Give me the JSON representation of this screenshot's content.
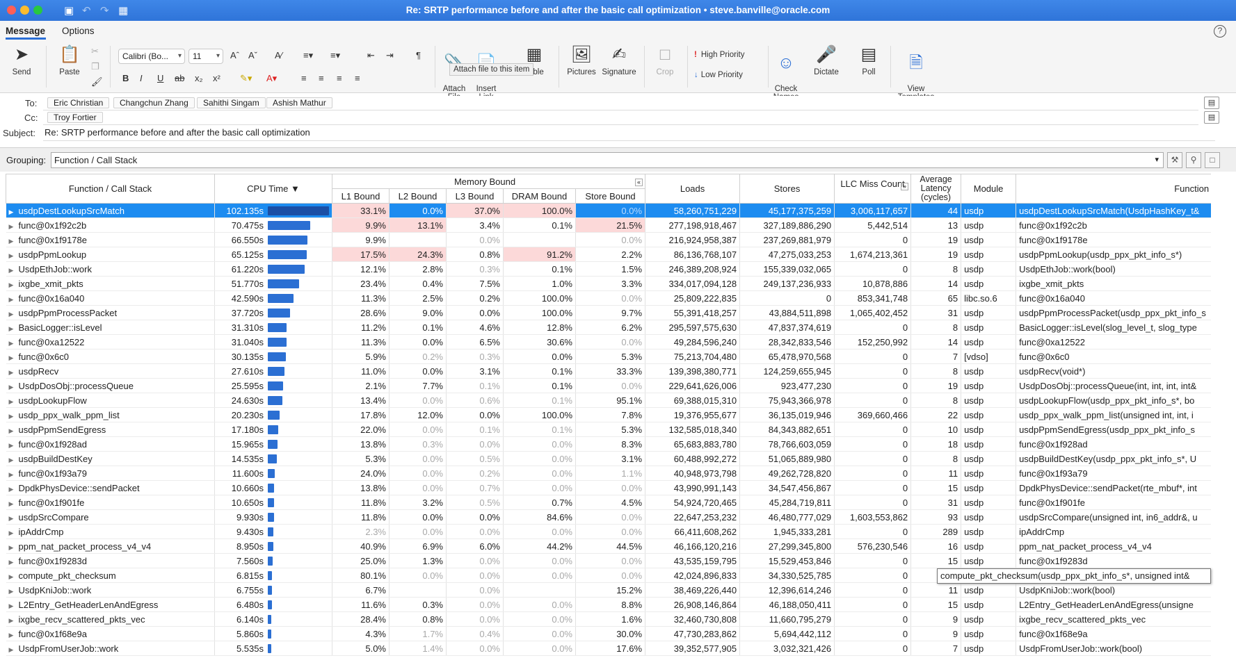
{
  "window": {
    "title": "Re: SRTP performance before and after the basic call optimization • steve.banville@oracle.com"
  },
  "ribbon": {
    "tabs": [
      {
        "label": "Message"
      },
      {
        "label": "Options"
      }
    ],
    "send": "Send",
    "paste": "Paste",
    "font_name": "Calibri (Bo...",
    "font_size": "11",
    "attach_file": "Attach\nFile",
    "insert_link": "Insert\nLink",
    "table": "Table",
    "pictures": "Pictures",
    "signature": "Signature",
    "crop": "Crop",
    "high_priority": "High Priority",
    "low_priority": "Low Priority",
    "check_names": "Check\nNames",
    "dictate": "Dictate",
    "poll": "Poll",
    "view_templates": "View\nTemplates",
    "tooltip": "Attach file to this item"
  },
  "header": {
    "to_label": "To:",
    "to": [
      "Eric Christian",
      "Changchun Zhang",
      "Sahithi Singam",
      "Ashish Mathur"
    ],
    "cc_label": "Cc:",
    "cc": [
      "Troy Fortier"
    ],
    "subject_label": "Subject:",
    "subject": "Re: SRTP performance before and after the basic call optimization"
  },
  "grouping": {
    "label": "Grouping:",
    "value": "Function / Call Stack"
  },
  "table": {
    "headers": {
      "function": "Function / Call Stack",
      "cpu_time": "CPU Time ▼",
      "memory_bound": "Memory Bound",
      "l1": "L1 Bound",
      "l2": "L2 Bound",
      "l3": "L3 Bound",
      "dram": "DRAM Bound",
      "store": "Store Bound",
      "loads": "Loads",
      "stores": "Stores",
      "llc": "LLC Miss Count",
      "latency": "Average Latency (cycles)",
      "module": "Module",
      "func_full": "Function"
    },
    "cpu_max_seconds": 102.135,
    "rows": [
      {
        "fn": "usdpDestLookupSrcMatch",
        "cpu": "102.135s",
        "l1": "33.1%",
        "l2": "0.0%",
        "l3": "37.0%",
        "dram": "100.0%",
        "store": "0.0%",
        "loads": "58,260,751,229",
        "stores": "45,177,375,259",
        "llc": "3,006,117,657",
        "lat": "44",
        "mod": "usdp",
        "full": "usdpDestLookupSrcMatch(UsdpHashKey_t&"
      },
      {
        "fn": "func@0x1f92c2b",
        "cpu": "70.475s",
        "l1": "9.9%",
        "l2": "13.1%",
        "l3": "3.4%",
        "dram": "0.1%",
        "store": "21.5%",
        "loads": "277,198,918,467",
        "stores": "327,189,886,290",
        "llc": "5,442,514",
        "lat": "13",
        "mod": "usdp",
        "full": "func@0x1f92c2b"
      },
      {
        "fn": "func@0x1f9178e",
        "cpu": "66.550s",
        "l1": "9.9%",
        "l2": "",
        "l3": "0.0%",
        "dram": "",
        "store": "0.0%",
        "loads": "216,924,958,387",
        "stores": "237,269,881,979",
        "llc": "0",
        "lat": "19",
        "mod": "usdp",
        "full": "func@0x1f9178e"
      },
      {
        "fn": "usdpPpmLookup",
        "cpu": "65.125s",
        "l1": "17.5%",
        "l2": "24.3%",
        "l3": "0.8%",
        "dram": "91.2%",
        "store": "2.2%",
        "loads": "86,136,768,107",
        "stores": "47,275,033,253",
        "llc": "1,674,213,361",
        "lat": "19",
        "mod": "usdp",
        "full": "usdpPpmLookup(usdp_ppx_pkt_info_s*)"
      },
      {
        "fn": "UsdpEthJob::work",
        "cpu": "61.220s",
        "l1": "12.1%",
        "l2": "2.8%",
        "l3": "0.3%",
        "dram": "0.1%",
        "store": "1.5%",
        "loads": "246,389,208,924",
        "stores": "155,339,032,065",
        "llc": "0",
        "lat": "8",
        "mod": "usdp",
        "full": "UsdpEthJob::work(bool)"
      },
      {
        "fn": "ixgbe_xmit_pkts",
        "cpu": "51.770s",
        "l1": "23.4%",
        "l2": "0.4%",
        "l3": "7.5%",
        "dram": "1.0%",
        "store": "3.3%",
        "loads": "334,017,094,128",
        "stores": "249,137,236,933",
        "llc": "10,878,886",
        "lat": "14",
        "mod": "usdp",
        "full": "ixgbe_xmit_pkts"
      },
      {
        "fn": "func@0x16a040",
        "cpu": "42.590s",
        "l1": "11.3%",
        "l2": "2.5%",
        "l3": "0.2%",
        "dram": "100.0%",
        "store": "0.0%",
        "loads": "25,809,222,835",
        "stores": "0",
        "llc": "853,341,748",
        "lat": "65",
        "mod": "libc.so.6",
        "full": "func@0x16a040"
      },
      {
        "fn": "usdpPpmProcessPacket",
        "cpu": "37.720s",
        "l1": "28.6%",
        "l2": "9.0%",
        "l3": "0.0%",
        "dram": "100.0%",
        "store": "9.7%",
        "loads": "55,391,418,257",
        "stores": "43,884,511,898",
        "llc": "1,065,402,452",
        "lat": "31",
        "mod": "usdp",
        "full": "usdpPpmProcessPacket(usdp_ppx_pkt_info_s"
      },
      {
        "fn": "BasicLogger::isLevel",
        "cpu": "31.310s",
        "l1": "11.2%",
        "l2": "0.1%",
        "l3": "4.6%",
        "dram": "12.8%",
        "store": "6.2%",
        "loads": "295,597,575,630",
        "stores": "47,837,374,619",
        "llc": "0",
        "lat": "8",
        "mod": "usdp",
        "full": "BasicLogger::isLevel(slog_level_t, slog_type"
      },
      {
        "fn": "func@0xa12522",
        "cpu": "31.040s",
        "l1": "11.3%",
        "l2": "0.0%",
        "l3": "6.5%",
        "dram": "30.6%",
        "store": "0.0%",
        "loads": "49,284,596,240",
        "stores": "28,342,833,546",
        "llc": "152,250,992",
        "lat": "14",
        "mod": "usdp",
        "full": "func@0xa12522"
      },
      {
        "fn": "func@0x6c0",
        "cpu": "30.135s",
        "l1": "5.9%",
        "l2": "0.2%",
        "l3": "0.3%",
        "dram": "0.0%",
        "store": "5.3%",
        "loads": "75,213,704,480",
        "stores": "65,478,970,568",
        "llc": "0",
        "lat": "7",
        "mod": "[vdso]",
        "full": "func@0x6c0"
      },
      {
        "fn": "usdpRecv",
        "cpu": "27.610s",
        "l1": "11.0%",
        "l2": "0.0%",
        "l3": "3.1%",
        "dram": "0.1%",
        "store": "33.3%",
        "loads": "139,398,380,771",
        "stores": "124,259,655,945",
        "llc": "0",
        "lat": "8",
        "mod": "usdp",
        "full": "usdpRecv(void*)"
      },
      {
        "fn": "UsdpDosObj::processQueue",
        "cpu": "25.595s",
        "l1": "2.1%",
        "l2": "7.7%",
        "l3": "0.1%",
        "dram": "0.1%",
        "store": "0.0%",
        "loads": "229,641,626,006",
        "stores": "923,477,230",
        "llc": "0",
        "lat": "19",
        "mod": "usdp",
        "full": "UsdpDosObj::processQueue(int, int, int, int&"
      },
      {
        "fn": "usdpLookupFlow",
        "cpu": "24.630s",
        "l1": "13.4%",
        "l2": "0.0%",
        "l3": "0.6%",
        "dram": "0.1%",
        "store": "95.1%",
        "loads": "69,388,015,310",
        "stores": "75,943,366,978",
        "llc": "0",
        "lat": "8",
        "mod": "usdp",
        "full": "usdpLookupFlow(usdp_ppx_pkt_info_s*, bo"
      },
      {
        "fn": "usdp_ppx_walk_ppm_list",
        "cpu": "20.230s",
        "l1": "17.8%",
        "l2": "12.0%",
        "l3": "0.0%",
        "dram": "100.0%",
        "store": "7.8%",
        "loads": "19,376,955,677",
        "stores": "36,135,019,946",
        "llc": "369,660,466",
        "lat": "22",
        "mod": "usdp",
        "full": "usdp_ppx_walk_ppm_list(unsigned int, int, i"
      },
      {
        "fn": "usdpPpmSendEgress",
        "cpu": "17.180s",
        "l1": "22.0%",
        "l2": "0.0%",
        "l3": "0.1%",
        "dram": "0.1%",
        "store": "5.3%",
        "loads": "132,585,018,340",
        "stores": "84,343,882,651",
        "llc": "0",
        "lat": "10",
        "mod": "usdp",
        "full": "usdpPpmSendEgress(usdp_ppx_pkt_info_s"
      },
      {
        "fn": "func@0x1f928ad",
        "cpu": "15.965s",
        "l1": "13.8%",
        "l2": "0.3%",
        "l3": "0.0%",
        "dram": "0.0%",
        "store": "8.3%",
        "loads": "65,683,883,780",
        "stores": "78,766,603,059",
        "llc": "0",
        "lat": "18",
        "mod": "usdp",
        "full": "func@0x1f928ad"
      },
      {
        "fn": "usdpBuildDestKey",
        "cpu": "14.535s",
        "l1": "5.3%",
        "l2": "0.0%",
        "l3": "0.5%",
        "dram": "0.0%",
        "store": "3.1%",
        "loads": "60,488,992,272",
        "stores": "51,065,889,980",
        "llc": "0",
        "lat": "8",
        "mod": "usdp",
        "full": "usdpBuildDestKey(usdp_ppx_pkt_info_s*, U"
      },
      {
        "fn": "func@0x1f93a79",
        "cpu": "11.600s",
        "l1": "24.0%",
        "l2": "0.0%",
        "l3": "0.2%",
        "dram": "0.0%",
        "store": "1.1%",
        "loads": "40,948,973,798",
        "stores": "49,262,728,820",
        "llc": "0",
        "lat": "11",
        "mod": "usdp",
        "full": "func@0x1f93a79"
      },
      {
        "fn": "DpdkPhysDevice::sendPacket",
        "cpu": "10.660s",
        "l1": "13.8%",
        "l2": "0.0%",
        "l3": "0.7%",
        "dram": "0.0%",
        "store": "0.0%",
        "loads": "43,990,991,143",
        "stores": "34,547,456,867",
        "llc": "0",
        "lat": "15",
        "mod": "usdp",
        "full": "DpdkPhysDevice::sendPacket(rte_mbuf*, int"
      },
      {
        "fn": "func@0x1f901fe",
        "cpu": "10.650s",
        "l1": "11.8%",
        "l2": "3.2%",
        "l3": "0.5%",
        "dram": "0.7%",
        "store": "4.5%",
        "loads": "54,924,720,465",
        "stores": "45,284,719,811",
        "llc": "0",
        "lat": "31",
        "mod": "usdp",
        "full": "func@0x1f901fe"
      },
      {
        "fn": "usdpSrcCompare",
        "cpu": "9.930s",
        "l1": "11.8%",
        "l2": "0.0%",
        "l3": "0.0%",
        "dram": "84.6%",
        "store": "0.0%",
        "loads": "22,647,253,232",
        "stores": "46,480,777,029",
        "llc": "1,603,553,862",
        "lat": "93",
        "mod": "usdp",
        "full": "usdpSrcCompare(unsigned int, in6_addr&, u"
      },
      {
        "fn": "ipAddrCmp",
        "cpu": "9.430s",
        "l1": "2.3%",
        "l2": "0.0%",
        "l3": "0.0%",
        "dram": "0.0%",
        "store": "0.0%",
        "loads": "66,411,608,262",
        "stores": "1,945,333,281",
        "llc": "0",
        "lat": "289",
        "mod": "usdp",
        "full": "ipAddrCmp"
      },
      {
        "fn": "ppm_nat_packet_process_v4_v4",
        "cpu": "8.950s",
        "l1": "40.9%",
        "l2": "6.9%",
        "l3": "6.0%",
        "dram": "44.2%",
        "store": "44.5%",
        "loads": "46,166,120,216",
        "stores": "27,299,345,800",
        "llc": "576,230,546",
        "lat": "16",
        "mod": "usdp",
        "full": "ppm_nat_packet_process_v4_v4"
      },
      {
        "fn": "func@0x1f9283d",
        "cpu": "7.560s",
        "l1": "25.0%",
        "l2": "1.3%",
        "l3": "0.0%",
        "dram": "0.0%",
        "store": "0.0%",
        "loads": "43,535,159,795",
        "stores": "15,529,453,846",
        "llc": "0",
        "lat": "15",
        "mod": "usdp",
        "full": "func@0x1f9283d"
      },
      {
        "fn": "compute_pkt_checksum",
        "cpu": "6.815s",
        "l1": "80.1%",
        "l2": "0.0%",
        "l3": "0.0%",
        "dram": "0.0%",
        "store": "0.0%",
        "loads": "42,024,896,833",
        "stores": "34,330,525,785",
        "llc": "0",
        "lat": "",
        "mod": "",
        "full": ""
      },
      {
        "fn": "UsdpKniJob::work",
        "cpu": "6.755s",
        "l1": "6.7%",
        "l2": "",
        "l3": "0.0%",
        "dram": "",
        "store": "15.2%",
        "loads": "38,469,226,440",
        "stores": "12,396,614,246",
        "llc": "0",
        "lat": "11",
        "mod": "usdp",
        "full": "UsdpKniJob::work(bool)"
      },
      {
        "fn": "L2Entry_GetHeaderLenAndEgress",
        "cpu": "6.480s",
        "l1": "11.6%",
        "l2": "0.3%",
        "l3": "0.0%",
        "dram": "0.0%",
        "store": "8.8%",
        "loads": "26,908,146,864",
        "stores": "46,188,050,411",
        "llc": "0",
        "lat": "15",
        "mod": "usdp",
        "full": "L2Entry_GetHeaderLenAndEgress(unsigne"
      },
      {
        "fn": "ixgbe_recv_scattered_pkts_vec",
        "cpu": "6.140s",
        "l1": "28.4%",
        "l2": "0.8%",
        "l3": "0.0%",
        "dram": "0.0%",
        "store": "1.6%",
        "loads": "32,460,730,808",
        "stores": "11,660,795,279",
        "llc": "0",
        "lat": "9",
        "mod": "usdp",
        "full": "ixgbe_recv_scattered_pkts_vec"
      },
      {
        "fn": "func@0x1f68e9a",
        "cpu": "5.860s",
        "l1": "4.3%",
        "l2": "1.7%",
        "l3": "0.4%",
        "dram": "0.0%",
        "store": "30.0%",
        "loads": "47,730,283,862",
        "stores": "5,694,442,112",
        "llc": "0",
        "lat": "9",
        "mod": "usdp",
        "full": "func@0x1f68e9a"
      },
      {
        "fn": "UsdpFromUserJob::work",
        "cpu": "5.535s",
        "l1": "5.0%",
        "l2": "1.4%",
        "l3": "0.0%",
        "dram": "0.0%",
        "store": "17.6%",
        "loads": "39,352,577,905",
        "stores": "3,032,321,426",
        "llc": "0",
        "lat": "7",
        "mod": "usdp",
        "full": "UsdpFromUserJob::work(bool)"
      }
    ],
    "tooltip": "compute_pkt_checksum(usdp_ppx_pkt_info_s*, unsigned int&"
  },
  "colors": {
    "selection": "#1d8cf0",
    "highlight": "#fcd9d9",
    "bar": "#2b6fd3"
  }
}
